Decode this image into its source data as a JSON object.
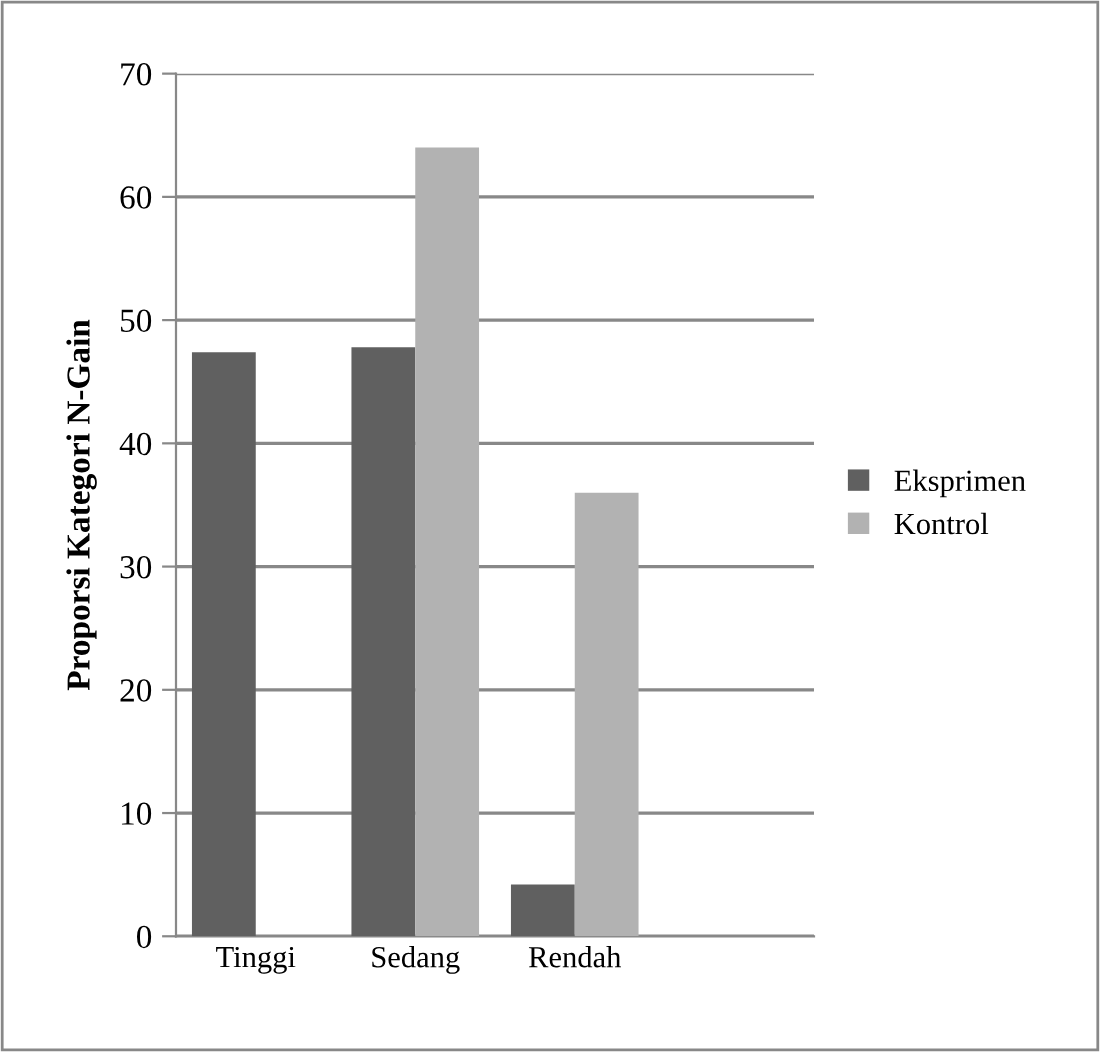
{
  "chart_data": {
    "type": "bar",
    "ylabel": "Proporsi Kategori N-Gain",
    "categories": [
      "Tinggi",
      "Sedang",
      "Rendah",
      null
    ],
    "series": [
      {
        "name": "Eksprimen",
        "color": "#606060",
        "values": [
          47.4,
          47.8,
          4.2,
          null
        ]
      },
      {
        "name": "Kontrol",
        "color": "#b2b2b2",
        "values": [
          null,
          64,
          36,
          null
        ]
      }
    ],
    "ylim": [
      0,
      70
    ],
    "yticks": [
      0,
      10,
      20,
      30,
      40,
      50,
      60,
      70
    ],
    "grid": "y",
    "legend": "right"
  }
}
